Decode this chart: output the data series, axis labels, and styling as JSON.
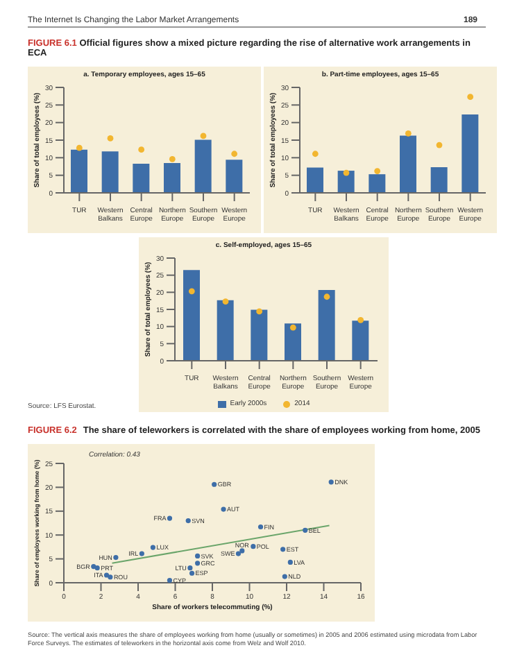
{
  "chart_data": [
    {
      "type": "bar",
      "title": "FIGURE 6.1 Official figures show a mixed picture regarding the rise of alternative work arrangements in ECA",
      "subtitle": "a. Temporary employees, ages 15–65",
      "ylabel": "Share of total employees (%)",
      "categories": [
        "TUR",
        "Western Balkans",
        "Central Europe",
        "Northern Europe",
        "Southern Europe",
        "Western Europe"
      ],
      "series": [
        {
          "color": "#3e6ea8",
          "values": [
            12.3,
            11.8,
            8.3,
            8.5,
            15.1,
            9.4
          ]
        },
        {
          "type": "scatter",
          "color": "#f2b630",
          "x": [
            "TUR",
            "Western Balkans",
            "Central Europe",
            "Northern Europe",
            "Southern Europe",
            "Western Europe"
          ],
          "values": [
            12.8,
            15.5,
            12.3,
            9.6,
            16.2,
            11.1
          ]
        }
      ],
      "ylim": [
        0,
        30
      ],
      "yticks": [
        0,
        5,
        10,
        15,
        20,
        25,
        30
      ],
      "marker": "circle",
      "annotations": [
        "The Internet Is Changing the Labor Market Arrangements",
        "189"
      ]
    },
    {
      "type": "bar",
      "subtitle": "b. Part-time employees, ages 15–65",
      "ylabel": "Share of total employees (%)",
      "categories": [
        "TUR",
        "Western Balkans",
        "Central Europe",
        "Northern Europe",
        "Southern Europe",
        "Western Europe"
      ],
      "series": [
        {
          "color": "#3e6ea8",
          "values": [
            7.2,
            6.3,
            5.3,
            16.3,
            7.3,
            22.3
          ]
        },
        {
          "type": "scatter",
          "color": "#f2b630",
          "x": [
            "TUR",
            "Western Balkans",
            "Central Europe",
            "Northern Europe",
            "Southern Europe",
            "Western Europe"
          ],
          "values": [
            11.1,
            5.7,
            6.2,
            16.9,
            13.6,
            27.3
          ]
        }
      ],
      "ylim": [
        0,
        30
      ],
      "yticks": [
        0,
        5,
        10,
        15,
        20,
        25,
        30
      ],
      "marker": "circle"
    },
    {
      "type": "bar",
      "subtitle": "c. Self-employed, ages 15–65",
      "ylabel": "Share of total employees (%)",
      "categories": [
        "TUR",
        "Western Balkans",
        "Central Europe",
        "Northern Europe",
        "Southern Europe",
        "Western Europe"
      ],
      "series": [
        {
          "name": "Early 2000s",
          "color": "#3e6ea8",
          "values": [
            26.5,
            17.7,
            14.9,
            10.9,
            20.7,
            11.7
          ]
        },
        {
          "type": "scatter",
          "name": "2014",
          "color": "#f2b630",
          "x": [
            "TUR",
            "Western Balkans",
            "Central Europe",
            "Northern Europe",
            "Southern Europe",
            "Western Europe"
          ],
          "values": [
            20.3,
            17.3,
            14.4,
            9.7,
            18.7,
            11.9
          ]
        }
      ],
      "ylim": [
        0,
        30
      ],
      "yticks": [
        0,
        5,
        10,
        15,
        20,
        25,
        30
      ],
      "marker": "circle",
      "legend": "bottom",
      "annotations": [
        "Source: LFS Eurostat."
      ]
    },
    {
      "type": "scatter",
      "title": "FIGURE 6.2",
      "subtitle": "The share of teleworkers is correlated with the share of employees working from home, 2005",
      "xlabel": "Share of workers telecommuting (%)",
      "ylabel": "Share of employees working from home (%)",
      "series": [
        {
          "color": "#3e6ea8",
          "marker": "circle",
          "x": [
            14.4,
            8.1,
            8.6,
            5.7,
            6.7,
            10.6,
            13.0,
            4.8,
            10.2,
            4.2,
            11.8,
            9.6,
            9.4,
            2.8,
            7.2,
            7.2,
            12.2,
            1.6,
            1.8,
            6.8,
            6.9,
            2.3,
            2.5,
            5.7,
            11.9
          ],
          "values": [
            21.1,
            20.6,
            15.4,
            13.5,
            13.0,
            11.7,
            11.0,
            7.4,
            7.6,
            6.1,
            7.0,
            6.7,
            6.1,
            5.3,
            5.6,
            4.1,
            4.3,
            3.4,
            3.1,
            3.1,
            2.0,
            1.6,
            1.2,
            0.5,
            1.3
          ]
        },
        {
          "type": "line",
          "color": "#6aa56a",
          "x": [
            2.6,
            14.3
          ],
          "values": [
            4.1,
            12.0
          ]
        }
      ],
      "xlim": [
        0,
        16
      ],
      "xticks": [
        0,
        2,
        4,
        6,
        8,
        10,
        12,
        14,
        16
      ],
      "ylim": [
        0,
        25
      ],
      "yticks": [
        0,
        5,
        10,
        15,
        20,
        25
      ],
      "annotations": [
        "Correlation: 0.43",
        {
          "text": "DNK",
          "x": 14.4,
          "y": 21.1
        },
        {
          "text": "GBR",
          "x": 8.1,
          "y": 20.6
        },
        {
          "text": "AUT",
          "x": 8.6,
          "y": 15.4
        },
        {
          "text": "FRA",
          "x": 5.7,
          "y": 13.5
        },
        {
          "text": "SVN",
          "x": 6.7,
          "y": 13.0
        },
        {
          "text": "FIN",
          "x": 10.6,
          "y": 11.7
        },
        {
          "text": "BEL",
          "x": 13.0,
          "y": 11.0
        },
        {
          "text": "LUX",
          "x": 4.8,
          "y": 7.4
        },
        {
          "text": "POL",
          "x": 10.2,
          "y": 7.6
        },
        {
          "text": "IRL",
          "x": 4.2,
          "y": 6.1
        },
        {
          "text": "EST",
          "x": 11.8,
          "y": 7.0
        },
        {
          "text": "NOR",
          "x": 9.6,
          "y": 6.7
        },
        {
          "text": "SWE",
          "x": 9.4,
          "y": 6.1
        },
        {
          "text": "HUN",
          "x": 2.8,
          "y": 5.3
        },
        {
          "text": "SVK",
          "x": 7.2,
          "y": 5.6
        },
        {
          "text": "GRC",
          "x": 7.2,
          "y": 4.1
        },
        {
          "text": "LVA",
          "x": 12.2,
          "y": 4.3
        },
        {
          "text": "BGR",
          "x": 1.6,
          "y": 3.4
        },
        {
          "text": "PRT",
          "x": 1.8,
          "y": 3.1
        },
        {
          "text": "LTU",
          "x": 6.8,
          "y": 3.1
        },
        {
          "text": "ESP",
          "x": 6.9,
          "y": 2.0
        },
        {
          "text": "ITA",
          "x": 2.3,
          "y": 1.6
        },
        {
          "text": "ROU",
          "x": 2.5,
          "y": 1.2
        },
        {
          "text": "CYP",
          "x": 5.7,
          "y": 0.5
        },
        {
          "text": "NLD",
          "x": 11.9,
          "y": 1.3
        },
        "Source: The vertical axis measures the share of employees working from home (usually or sometimes) in 2005 and 2006 estimated using microdata from Labor Force Surveys. The estimates of teleworkers in the horizontal axis come from Welz and Wolf 2010."
      ]
    }
  ]
}
